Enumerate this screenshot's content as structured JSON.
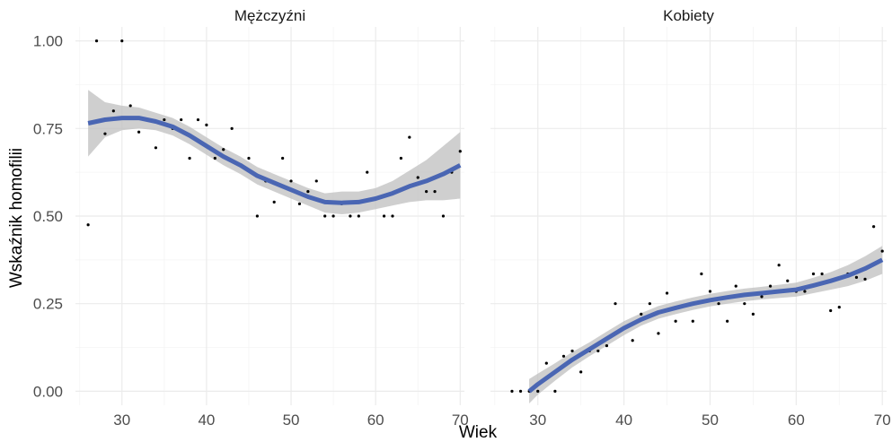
{
  "chart_data": {
    "type": "scatter",
    "xlabel": "Wiek",
    "ylabel": "Wskaźnik homofilii",
    "xlim": [
      24.5,
      70.5
    ],
    "ylim": [
      -0.04,
      1.04
    ],
    "x_ticks": [
      30,
      40,
      50,
      60,
      70
    ],
    "y_ticks": [
      0,
      0.25,
      0.5,
      0.75,
      1.0
    ],
    "x_tick_labels": [
      "30",
      "40",
      "50",
      "60",
      "70"
    ],
    "y_tick_labels": [
      "0.00",
      "0.25",
      "0.50",
      "0.75",
      "1.00"
    ],
    "grid": true,
    "colors": {
      "smooth": "#4a66b3",
      "band": "#bfbfbf",
      "points": "#000000",
      "grid": "#ebebeb"
    },
    "panels": [
      {
        "label": "Mężczyźni",
        "points": [
          {
            "x": 26,
            "y": 0.475
          },
          {
            "x": 27,
            "y": 1.0
          },
          {
            "x": 28,
            "y": 0.735
          },
          {
            "x": 29,
            "y": 0.8
          },
          {
            "x": 30,
            "y": 1.0
          },
          {
            "x": 31,
            "y": 0.815
          },
          {
            "x": 32,
            "y": 0.74
          },
          {
            "x": 33,
            "y": 0.775
          },
          {
            "x": 34,
            "y": 0.695
          },
          {
            "x": 35,
            "y": 0.775
          },
          {
            "x": 36,
            "y": 0.75
          },
          {
            "x": 37,
            "y": 0.775
          },
          {
            "x": 38,
            "y": 0.665
          },
          {
            "x": 39,
            "y": 0.775
          },
          {
            "x": 40,
            "y": 0.76
          },
          {
            "x": 41,
            "y": 0.665
          },
          {
            "x": 42,
            "y": 0.69
          },
          {
            "x": 43,
            "y": 0.75
          },
          {
            "x": 44,
            "y": 0.645
          },
          {
            "x": 45,
            "y": 0.665
          },
          {
            "x": 46,
            "y": 0.5
          },
          {
            "x": 47,
            "y": 0.6
          },
          {
            "x": 48,
            "y": 0.54
          },
          {
            "x": 49,
            "y": 0.665
          },
          {
            "x": 50,
            "y": 0.6
          },
          {
            "x": 51,
            "y": 0.535
          },
          {
            "x": 52,
            "y": 0.57
          },
          {
            "x": 53,
            "y": 0.6
          },
          {
            "x": 54,
            "y": 0.5
          },
          {
            "x": 55,
            "y": 0.5
          },
          {
            "x": 56,
            "y": 0.535
          },
          {
            "x": 57,
            "y": 0.5
          },
          {
            "x": 58,
            "y": 0.5
          },
          {
            "x": 59,
            "y": 0.625
          },
          {
            "x": 60,
            "y": 0.55
          },
          {
            "x": 61,
            "y": 0.5
          },
          {
            "x": 62,
            "y": 0.5
          },
          {
            "x": 63,
            "y": 0.665
          },
          {
            "x": 64,
            "y": 0.725
          },
          {
            "x": 65,
            "y": 0.61
          },
          {
            "x": 66,
            "y": 0.57
          },
          {
            "x": 67,
            "y": 0.57
          },
          {
            "x": 68,
            "y": 0.5
          },
          {
            "x": 69,
            "y": 0.625
          },
          {
            "x": 70,
            "y": 0.685
          }
        ],
        "smooth": [
          {
            "x": 26,
            "y": 0.765,
            "lo": 0.67,
            "hi": 0.86
          },
          {
            "x": 28,
            "y": 0.775,
            "lo": 0.725,
            "hi": 0.825
          },
          {
            "x": 30,
            "y": 0.78,
            "lo": 0.745,
            "hi": 0.815
          },
          {
            "x": 32,
            "y": 0.78,
            "lo": 0.75,
            "hi": 0.81
          },
          {
            "x": 34,
            "y": 0.77,
            "lo": 0.745,
            "hi": 0.795
          },
          {
            "x": 36,
            "y": 0.755,
            "lo": 0.73,
            "hi": 0.78
          },
          {
            "x": 38,
            "y": 0.73,
            "lo": 0.705,
            "hi": 0.755
          },
          {
            "x": 40,
            "y": 0.7,
            "lo": 0.675,
            "hi": 0.725
          },
          {
            "x": 42,
            "y": 0.67,
            "lo": 0.645,
            "hi": 0.695
          },
          {
            "x": 44,
            "y": 0.645,
            "lo": 0.62,
            "hi": 0.67
          },
          {
            "x": 46,
            "y": 0.615,
            "lo": 0.59,
            "hi": 0.64
          },
          {
            "x": 48,
            "y": 0.595,
            "lo": 0.57,
            "hi": 0.62
          },
          {
            "x": 50,
            "y": 0.575,
            "lo": 0.55,
            "hi": 0.6
          },
          {
            "x": 52,
            "y": 0.555,
            "lo": 0.53,
            "hi": 0.58
          },
          {
            "x": 54,
            "y": 0.54,
            "lo": 0.51,
            "hi": 0.565
          },
          {
            "x": 56,
            "y": 0.538,
            "lo": 0.505,
            "hi": 0.57
          },
          {
            "x": 58,
            "y": 0.54,
            "lo": 0.51,
            "hi": 0.57
          },
          {
            "x": 60,
            "y": 0.55,
            "lo": 0.52,
            "hi": 0.58
          },
          {
            "x": 62,
            "y": 0.565,
            "lo": 0.53,
            "hi": 0.6
          },
          {
            "x": 64,
            "y": 0.585,
            "lo": 0.54,
            "hi": 0.63
          },
          {
            "x": 66,
            "y": 0.6,
            "lo": 0.545,
            "hi": 0.66
          },
          {
            "x": 68,
            "y": 0.62,
            "lo": 0.545,
            "hi": 0.7
          },
          {
            "x": 70,
            "y": 0.645,
            "lo": 0.55,
            "hi": 0.74
          }
        ]
      },
      {
        "label": "Kobiety",
        "points": [
          {
            "x": 27,
            "y": 0.0
          },
          {
            "x": 28,
            "y": 0.0
          },
          {
            "x": 29,
            "y": 0.0
          },
          {
            "x": 30,
            "y": 0.0
          },
          {
            "x": 31,
            "y": 0.08
          },
          {
            "x": 32,
            "y": 0.0
          },
          {
            "x": 33,
            "y": 0.1
          },
          {
            "x": 34,
            "y": 0.115
          },
          {
            "x": 35,
            "y": 0.055
          },
          {
            "x": 36,
            "y": 0.115
          },
          {
            "x": 37,
            "y": 0.115
          },
          {
            "x": 38,
            "y": 0.13
          },
          {
            "x": 39,
            "y": 0.25
          },
          {
            "x": 40,
            "y": 0.18
          },
          {
            "x": 41,
            "y": 0.145
          },
          {
            "x": 42,
            "y": 0.22
          },
          {
            "x": 43,
            "y": 0.25
          },
          {
            "x": 44,
            "y": 0.165
          },
          {
            "x": 45,
            "y": 0.28
          },
          {
            "x": 46,
            "y": 0.2
          },
          {
            "x": 47,
            "y": 0.245
          },
          {
            "x": 48,
            "y": 0.2
          },
          {
            "x": 49,
            "y": 0.335
          },
          {
            "x": 50,
            "y": 0.285
          },
          {
            "x": 51,
            "y": 0.25
          },
          {
            "x": 52,
            "y": 0.2
          },
          {
            "x": 53,
            "y": 0.3
          },
          {
            "x": 54,
            "y": 0.25
          },
          {
            "x": 55,
            "y": 0.22
          },
          {
            "x": 56,
            "y": 0.27
          },
          {
            "x": 57,
            "y": 0.3
          },
          {
            "x": 58,
            "y": 0.36
          },
          {
            "x": 59,
            "y": 0.315
          },
          {
            "x": 60,
            "y": 0.285
          },
          {
            "x": 61,
            "y": 0.285
          },
          {
            "x": 62,
            "y": 0.335
          },
          {
            "x": 63,
            "y": 0.335
          },
          {
            "x": 64,
            "y": 0.23
          },
          {
            "x": 65,
            "y": 0.24
          },
          {
            "x": 66,
            "y": 0.335
          },
          {
            "x": 67,
            "y": 0.325
          },
          {
            "x": 68,
            "y": 0.32
          },
          {
            "x": 69,
            "y": 0.47
          },
          {
            "x": 70,
            "y": 0.4
          }
        ],
        "smooth": [
          {
            "x": 29,
            "y": 0.0,
            "lo": -0.035,
            "hi": 0.035
          },
          {
            "x": 30,
            "y": 0.02,
            "lo": -0.01,
            "hi": 0.05
          },
          {
            "x": 32,
            "y": 0.055,
            "lo": 0.03,
            "hi": 0.08
          },
          {
            "x": 34,
            "y": 0.09,
            "lo": 0.068,
            "hi": 0.112
          },
          {
            "x": 36,
            "y": 0.12,
            "lo": 0.1,
            "hi": 0.14
          },
          {
            "x": 38,
            "y": 0.15,
            "lo": 0.13,
            "hi": 0.17
          },
          {
            "x": 40,
            "y": 0.18,
            "lo": 0.16,
            "hi": 0.2
          },
          {
            "x": 42,
            "y": 0.205,
            "lo": 0.187,
            "hi": 0.223
          },
          {
            "x": 44,
            "y": 0.225,
            "lo": 0.207,
            "hi": 0.243
          },
          {
            "x": 46,
            "y": 0.238,
            "lo": 0.22,
            "hi": 0.256
          },
          {
            "x": 48,
            "y": 0.25,
            "lo": 0.232,
            "hi": 0.268
          },
          {
            "x": 50,
            "y": 0.26,
            "lo": 0.242,
            "hi": 0.278
          },
          {
            "x": 52,
            "y": 0.268,
            "lo": 0.25,
            "hi": 0.286
          },
          {
            "x": 54,
            "y": 0.275,
            "lo": 0.257,
            "hi": 0.293
          },
          {
            "x": 56,
            "y": 0.28,
            "lo": 0.262,
            "hi": 0.298
          },
          {
            "x": 58,
            "y": 0.285,
            "lo": 0.266,
            "hi": 0.304
          },
          {
            "x": 60,
            "y": 0.29,
            "lo": 0.27,
            "hi": 0.31
          },
          {
            "x": 62,
            "y": 0.302,
            "lo": 0.28,
            "hi": 0.324
          },
          {
            "x": 64,
            "y": 0.315,
            "lo": 0.29,
            "hi": 0.34
          },
          {
            "x": 66,
            "y": 0.33,
            "lo": 0.3,
            "hi": 0.36
          },
          {
            "x": 68,
            "y": 0.35,
            "lo": 0.315,
            "hi": 0.385
          },
          {
            "x": 70,
            "y": 0.375,
            "lo": 0.335,
            "hi": 0.415
          }
        ]
      }
    ]
  }
}
